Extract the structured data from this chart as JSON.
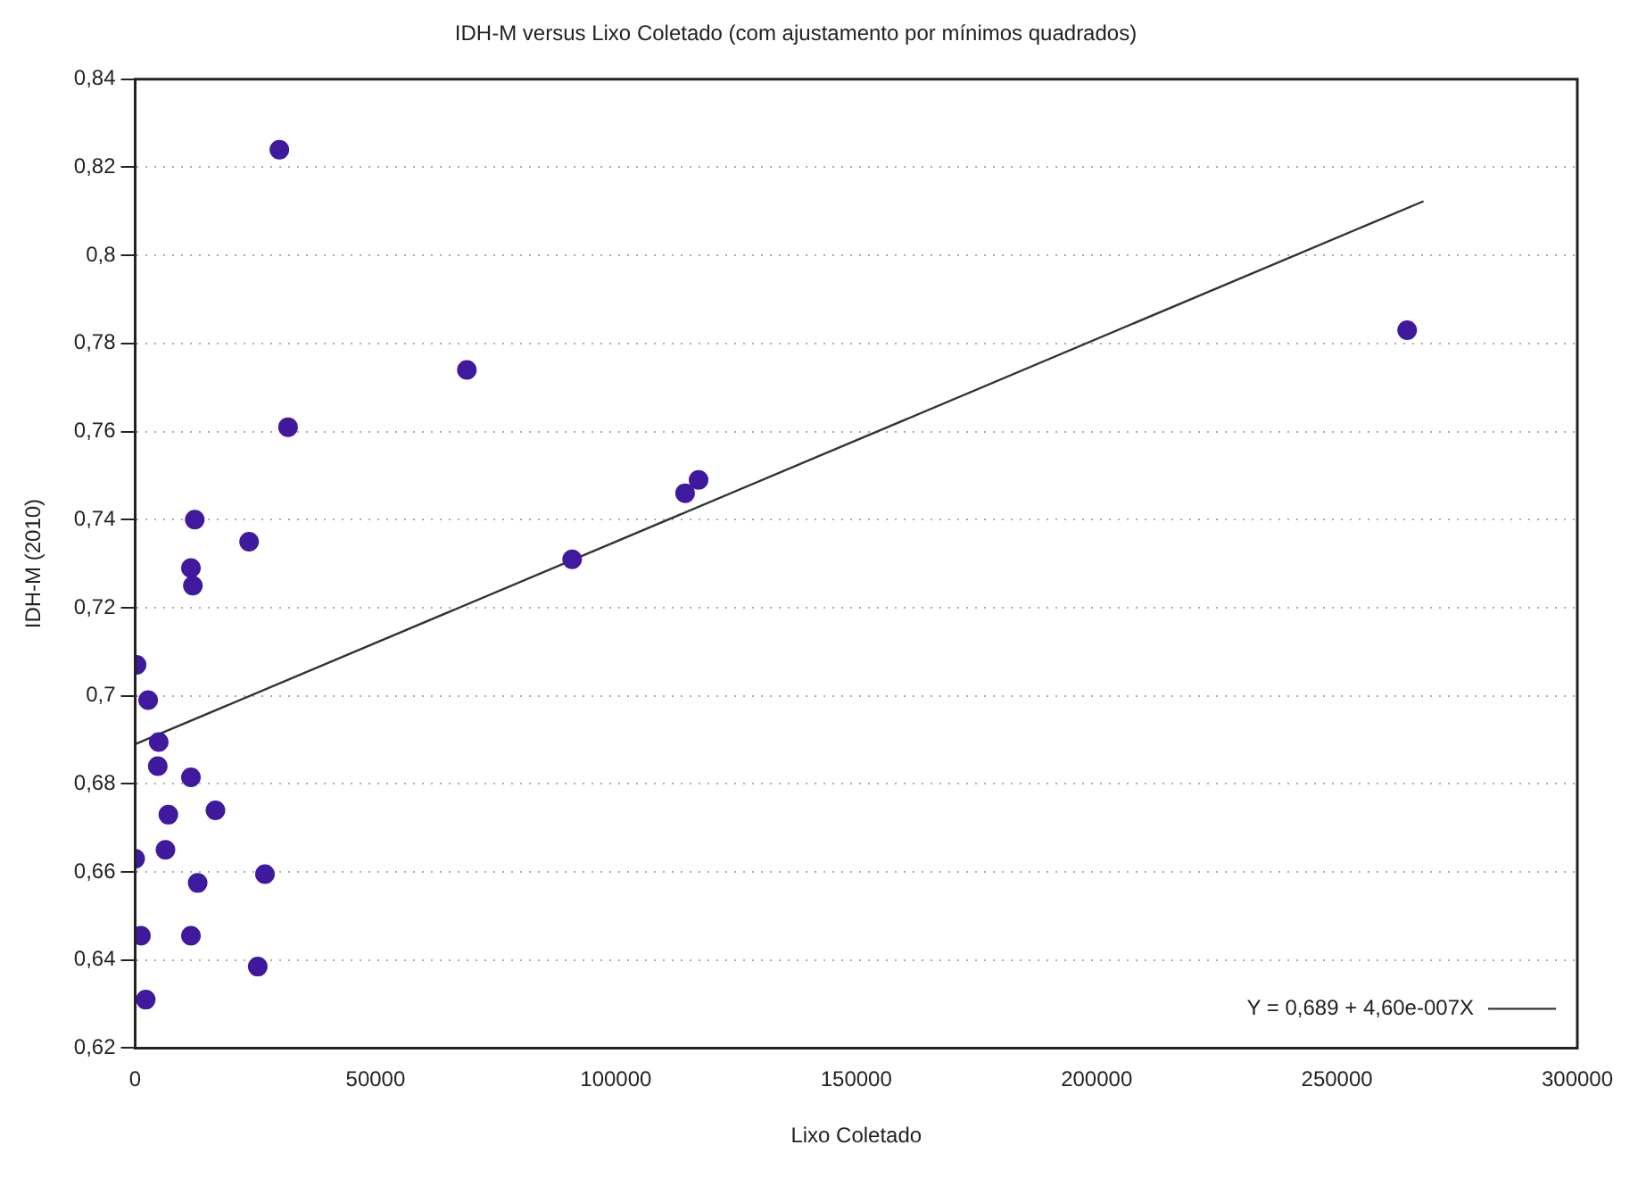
{
  "chart_data": {
    "type": "scatter",
    "title": "IDH-M versus Lixo Coletado (com ajustamento por mínimos quadrados)",
    "xlabel": "Lixo Coletado",
    "ylabel": "IDH-M (2010)",
    "xlim": [
      0,
      300000
    ],
    "xticks": [
      0,
      50000,
      100000,
      150000,
      200000,
      250000,
      300000
    ],
    "ylim": [
      0.62,
      0.84
    ],
    "yticks": [
      {
        "value": 0.62,
        "label": "0,62"
      },
      {
        "value": 0.64,
        "label": "0,64"
      },
      {
        "value": 0.66,
        "label": "0,66"
      },
      {
        "value": 0.68,
        "label": "0,68"
      },
      {
        "value": 0.7,
        "label": "0,7"
      },
      {
        "value": 0.72,
        "label": "0,72"
      },
      {
        "value": 0.74,
        "label": "0,74"
      },
      {
        "value": 0.76,
        "label": "0,76"
      },
      {
        "value": 0.78,
        "label": "0,78"
      },
      {
        "value": 0.8,
        "label": "0,8"
      },
      {
        "value": 0.82,
        "label": "0,82"
      },
      {
        "value": 0.84,
        "label": "0,84"
      }
    ],
    "grid": "y",
    "legend": "bottom right",
    "series": [
      {
        "marker": "circle",
        "color": "#3f1a9e",
        "x": [
          300,
          2700,
          4900,
          4700,
          11600,
          6900,
          16700,
          0,
          6300,
          13000,
          27000,
          1200,
          11600,
          25500,
          2200,
          12400,
          23700,
          11600,
          12000,
          30000,
          31800,
          69000,
          114400,
          117200,
          90900,
          264600
        ],
        "values": [
          0.707,
          0.699,
          0.6895,
          0.684,
          0.6815,
          0.673,
          0.674,
          0.663,
          0.665,
          0.6575,
          0.6595,
          0.6455,
          0.6455,
          0.6385,
          0.631,
          0.74,
          0.735,
          0.729,
          0.725,
          0.824,
          0.761,
          0.774,
          0.746,
          0.749,
          0.731,
          0.783
        ]
      },
      {
        "type": "line",
        "name": "Y = 0,689 + 4,60e-007X",
        "color": "#333333",
        "line_style": "solid",
        "marker": "none",
        "x": [
          0,
          268000
        ],
        "values": [
          0.689,
          0.8123
        ]
      }
    ]
  }
}
